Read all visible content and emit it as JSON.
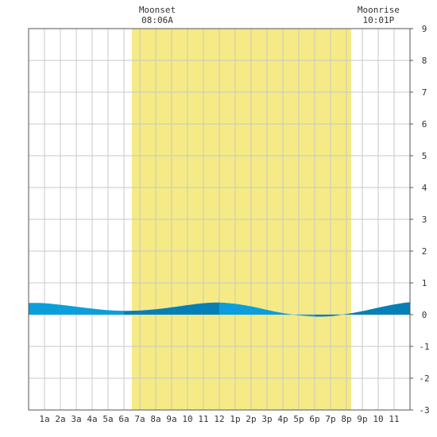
{
  "chart_data": {
    "type": "area",
    "title": "",
    "xlabel": "",
    "ylabel": "",
    "x_tick_labels": [
      "1a",
      "2a",
      "3a",
      "4a",
      "5a",
      "6a",
      "7a",
      "8a",
      "9a",
      "10",
      "11",
      "12",
      "1p",
      "2p",
      "3p",
      "4p",
      "5p",
      "6p",
      "7p",
      "8p",
      "9p",
      "10",
      "11"
    ],
    "xlim": [
      0,
      24
    ],
    "ylim": [
      -3,
      9
    ],
    "y_ticks": [
      -3,
      -2,
      -1,
      0,
      1,
      2,
      3,
      4,
      5,
      6,
      7,
      8,
      9
    ],
    "y_tick_labels": [
      "-3",
      "-2",
      "-1",
      "0",
      "1",
      "2",
      "3",
      "4",
      "5",
      "6",
      "7",
      "8",
      "9"
    ],
    "grid": true,
    "daylight": {
      "start_hour": 6.5,
      "end_hour": 20.3
    },
    "series": [
      {
        "x": [
          0,
          1,
          2,
          3,
          4,
          5,
          6,
          7,
          8,
          9,
          10,
          11,
          12,
          13,
          14,
          15,
          16,
          17,
          18,
          19,
          20,
          21,
          22,
          23,
          24
        ],
        "y": [
          0.37,
          0.36,
          0.31,
          0.25,
          0.19,
          0.14,
          0.12,
          0.13,
          0.17,
          0.23,
          0.3,
          0.36,
          0.38,
          0.34,
          0.26,
          0.15,
          0.05,
          -0.02,
          -0.06,
          -0.05,
          0.02,
          0.11,
          0.22,
          0.32,
          0.39
        ]
      }
    ],
    "events": [
      {
        "label": "Moonset",
        "time": "08:06A",
        "hour": 8.1
      },
      {
        "label": "Moonrise",
        "time": "10:01P",
        "hour": 22.02
      }
    ]
  },
  "colors": {
    "daylight": "#f5ea85",
    "tide_light": "#0a9fdb",
    "tide_dark": "#0580b7",
    "grid": "#c8c8c8",
    "frame": "#555555"
  }
}
